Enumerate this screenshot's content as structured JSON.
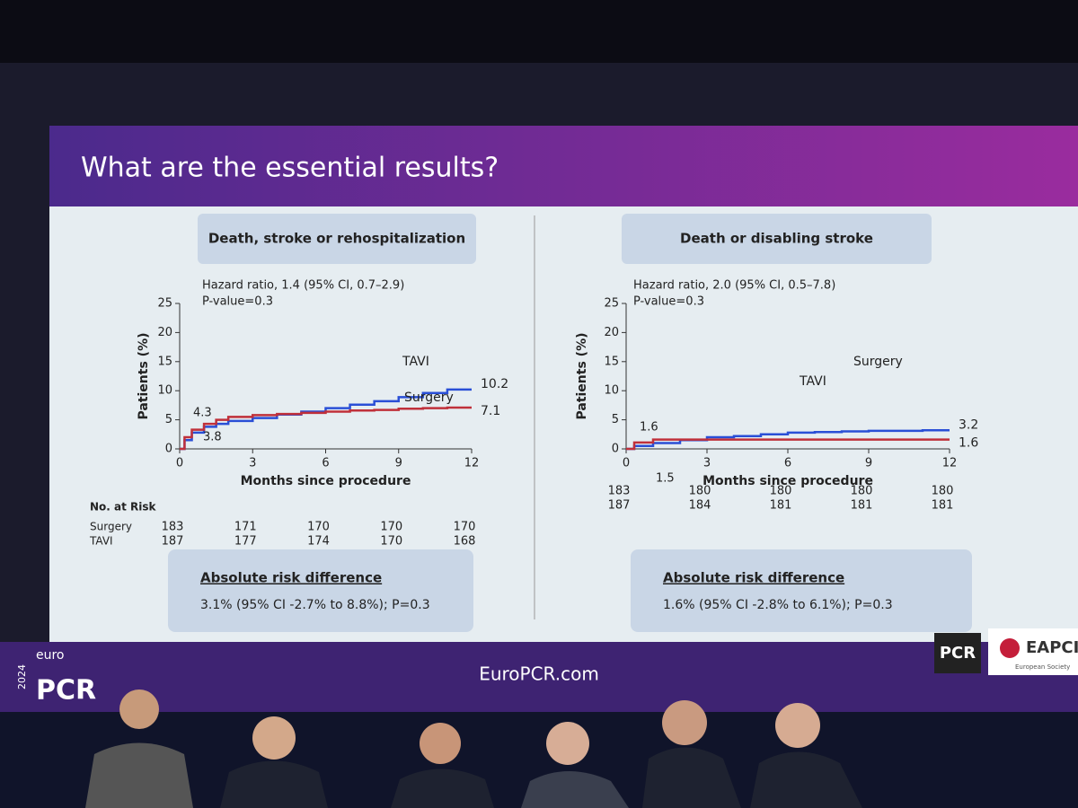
{
  "slide": {
    "title": "What are the essential results?",
    "footer": "EuroPCR.com",
    "logo_left": [
      "euro",
      "2024",
      "PCR"
    ],
    "logo_right": [
      "PCR",
      "EAPCI",
      "European Society"
    ]
  },
  "chart_data": [
    {
      "type": "line",
      "title": "Death, stroke or rehospitalization",
      "annotations": [
        "Hazard ratio, 1.4 (95% CI, 0.7–2.9)",
        "P-value=0.3"
      ],
      "xlabel": "Months since procedure",
      "ylabel": "Patients (%)",
      "xlim": [
        0,
        12
      ],
      "ylim": [
        0,
        25
      ],
      "xticks": [
        0,
        3,
        6,
        9,
        12
      ],
      "yticks": [
        0,
        5,
        10,
        15,
        20,
        25
      ],
      "series": [
        {
          "name": "TAVI",
          "color": "#2a4fd6",
          "x": [
            0,
            0.2,
            0.5,
            1,
            1.5,
            2,
            3,
            4,
            5,
            6,
            7,
            8,
            9,
            10,
            11,
            12
          ],
          "values": [
            0,
            1.5,
            2.8,
            3.8,
            4.3,
            4.8,
            5.3,
            5.9,
            6.4,
            7.0,
            7.6,
            8.2,
            8.9,
            9.6,
            10.2,
            10.2
          ]
        },
        {
          "name": "Surgery",
          "color": "#c0303a",
          "x": [
            0,
            0.2,
            0.5,
            1,
            1.5,
            2,
            3,
            4,
            5,
            6,
            7,
            8,
            9,
            10,
            11,
            12
          ],
          "values": [
            0,
            2.0,
            3.3,
            4.3,
            5.0,
            5.5,
            5.8,
            6.0,
            6.2,
            6.4,
            6.6,
            6.7,
            6.9,
            7.0,
            7.1,
            7.1
          ]
        }
      ],
      "risk_table": {
        "title": "No. at Risk",
        "rows": [
          {
            "name": "Surgery",
            "values": [
              183,
              171,
              170,
              170,
              170
            ]
          },
          {
            "name": "TAVI",
            "values": [
              187,
              177,
              174,
              170,
              168
            ]
          }
        ]
      },
      "risk_difference": {
        "title": "Absolute risk difference",
        "text": "3.1% (95% CI -2.7% to 8.8%); P=0.3"
      }
    },
    {
      "type": "line",
      "title": "Death or disabling stroke",
      "annotations": [
        "Hazard ratio, 2.0 (95% CI, 0.5–7.8)",
        "P-value=0.3"
      ],
      "xlabel": "Months since procedure",
      "ylabel": "Patients (%)",
      "xlim": [
        0,
        12
      ],
      "ylim": [
        0,
        25
      ],
      "xticks": [
        0,
        3,
        6,
        9,
        12
      ],
      "yticks": [
        0,
        5,
        10,
        15,
        20,
        25
      ],
      "series": [
        {
          "name": "TAVI",
          "color": "#2a4fd6",
          "x": [
            0,
            0.3,
            1,
            2,
            3,
            4,
            5,
            6,
            7,
            8,
            9,
            10,
            11,
            12
          ],
          "values": [
            0,
            0.5,
            1.0,
            1.5,
            2.0,
            2.2,
            2.5,
            2.8,
            2.9,
            3.0,
            3.1,
            3.1,
            3.2,
            3.2
          ]
        },
        {
          "name": "Surgery",
          "color": "#c0303a",
          "x": [
            0,
            0.3,
            1,
            2,
            3,
            4,
            5,
            6,
            7,
            8,
            9,
            10,
            11,
            12
          ],
          "values": [
            0,
            1.1,
            1.6,
            1.6,
            1.6,
            1.6,
            1.6,
            1.6,
            1.6,
            1.6,
            1.6,
            1.6,
            1.6,
            1.6
          ]
        }
      ],
      "risk_table": {
        "rows": [
          {
            "values": [
              183,
              180,
              180,
              180,
              180
            ]
          },
          {
            "values": [
              187,
              184,
              181,
              181,
              181
            ]
          }
        ]
      },
      "risk_difference": {
        "title": "Absolute risk difference",
        "text": "1.6% (95% CI -2.8% to 6.1%); P=0.3"
      }
    }
  ]
}
